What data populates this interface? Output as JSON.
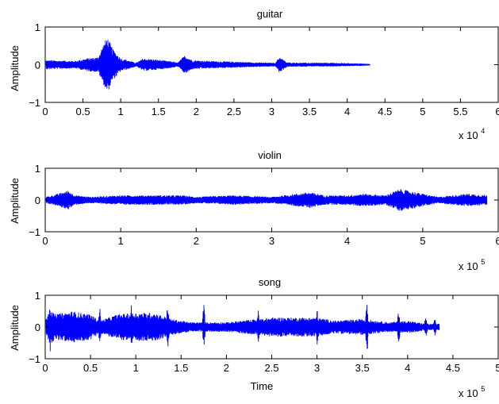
{
  "chart_data": [
    {
      "type": "line",
      "title": "guitar",
      "xlabel": "",
      "ylabel": "Amplitude",
      "x_multiplier": "x 10",
      "x_exponent": "4",
      "xlim": [
        0,
        60000
      ],
      "ylim": [
        -1,
        1
      ],
      "x_ticks": [
        0,
        5000,
        10000,
        15000,
        20000,
        25000,
        30000,
        35000,
        40000,
        45000,
        50000,
        55000,
        60000
      ],
      "x_tick_labels": [
        "0",
        "0.5",
        "1",
        "1.5",
        "2",
        "2.5",
        "3",
        "3.5",
        "4",
        "4.5",
        "5",
        "5.5",
        "6"
      ],
      "y_ticks": [
        -1,
        0,
        1
      ],
      "y_tick_labels": [
        "−1",
        "0",
        "1"
      ],
      "grid": false,
      "color": "#0000ff",
      "signal_length": 43000,
      "envelope": [
        [
          0,
          0.12
        ],
        [
          4000,
          0.1
        ],
        [
          5500,
          0.17
        ],
        [
          7000,
          0.2
        ],
        [
          7500,
          0.45
        ],
        [
          8200,
          0.75
        ],
        [
          9000,
          0.4
        ],
        [
          10000,
          0.17
        ],
        [
          11000,
          0.12
        ],
        [
          12000,
          0.05
        ],
        [
          13000,
          0.17
        ],
        [
          15000,
          0.13
        ],
        [
          17000,
          0.08
        ],
        [
          17500,
          0.05
        ],
        [
          18500,
          0.25
        ],
        [
          19500,
          0.12
        ],
        [
          22000,
          0.1
        ],
        [
          25000,
          0.08
        ],
        [
          28000,
          0.06
        ],
        [
          30500,
          0.05
        ],
        [
          31000,
          0.22
        ],
        [
          32000,
          0.06
        ],
        [
          35000,
          0.05
        ],
        [
          38000,
          0.05
        ],
        [
          40000,
          0.04
        ],
        [
          42000,
          0.03
        ],
        [
          43000,
          0.02
        ]
      ]
    },
    {
      "type": "line",
      "title": "violin",
      "xlabel": "",
      "ylabel": "Amplitude",
      "x_multiplier": "x 10",
      "x_exponent": "5",
      "xlim": [
        0,
        600000
      ],
      "ylim": [
        -1,
        1
      ],
      "x_ticks": [
        0,
        100000,
        200000,
        300000,
        400000,
        500000,
        600000
      ],
      "x_tick_labels": [
        "0",
        "1",
        "2",
        "3",
        "4",
        "5",
        "6"
      ],
      "y_ticks": [
        -1,
        0,
        1
      ],
      "y_tick_labels": [
        "−1",
        "0",
        "1"
      ],
      "grid": false,
      "color": "#0000ff",
      "signal_length": 585000,
      "envelope": [
        [
          0,
          0.1
        ],
        [
          10000,
          0.15
        ],
        [
          30000,
          0.3
        ],
        [
          40000,
          0.15
        ],
        [
          60000,
          0.1
        ],
        [
          100000,
          0.15
        ],
        [
          150000,
          0.15
        ],
        [
          180000,
          0.15
        ],
        [
          200000,
          0.1
        ],
        [
          250000,
          0.15
        ],
        [
          300000,
          0.1
        ],
        [
          350000,
          0.25
        ],
        [
          370000,
          0.15
        ],
        [
          400000,
          0.15
        ],
        [
          420000,
          0.2
        ],
        [
          450000,
          0.15
        ],
        [
          470000,
          0.35
        ],
        [
          500000,
          0.2
        ],
        [
          520000,
          0.1
        ],
        [
          560000,
          0.2
        ],
        [
          585000,
          0.15
        ]
      ]
    },
    {
      "type": "line",
      "title": "song",
      "xlabel": "Time",
      "ylabel": "Amplitude",
      "x_multiplier": "x 10",
      "x_exponent": "5",
      "xlim": [
        0,
        500000
      ],
      "ylim": [
        -1,
        1
      ],
      "x_ticks": [
        0,
        50000,
        100000,
        150000,
        200000,
        250000,
        300000,
        350000,
        400000,
        450000,
        500000
      ],
      "x_tick_labels": [
        "0",
        "0.5",
        "1",
        "1.5",
        "2",
        "2.5",
        "3",
        "3.5",
        "4",
        "4.5",
        "5"
      ],
      "y_ticks": [
        -1,
        0,
        1
      ],
      "y_tick_labels": [
        "−1",
        "0",
        "1"
      ],
      "grid": false,
      "color": "#0000ff",
      "signal_length": 435000,
      "envelope": [
        [
          0,
          0.2
        ],
        [
          5000,
          0.6
        ],
        [
          10000,
          0.4
        ],
        [
          30000,
          0.5
        ],
        [
          50000,
          0.4
        ],
        [
          60000,
          0.2
        ],
        [
          80000,
          0.4
        ],
        [
          100000,
          0.45
        ],
        [
          120000,
          0.45
        ],
        [
          140000,
          0.25
        ],
        [
          160000,
          0.15
        ],
        [
          190000,
          0.15
        ],
        [
          200000,
          0.15
        ],
        [
          250000,
          0.3
        ],
        [
          270000,
          0.3
        ],
        [
          300000,
          0.3
        ],
        [
          320000,
          0.2
        ],
        [
          350000,
          0.25
        ],
        [
          380000,
          0.15
        ],
        [
          400000,
          0.2
        ],
        [
          420000,
          0.1
        ],
        [
          435000,
          0.1
        ]
      ],
      "spikes": [
        [
          5000,
          0.85
        ],
        [
          60000,
          0.7
        ],
        [
          95000,
          0.7
        ],
        [
          135000,
          0.75
        ],
        [
          175000,
          0.75
        ],
        [
          235000,
          0.55
        ],
        [
          300000,
          0.6
        ],
        [
          355000,
          0.9
        ],
        [
          390000,
          0.6
        ],
        [
          420000,
          0.35
        ],
        [
          430000,
          0.3
        ]
      ]
    }
  ]
}
